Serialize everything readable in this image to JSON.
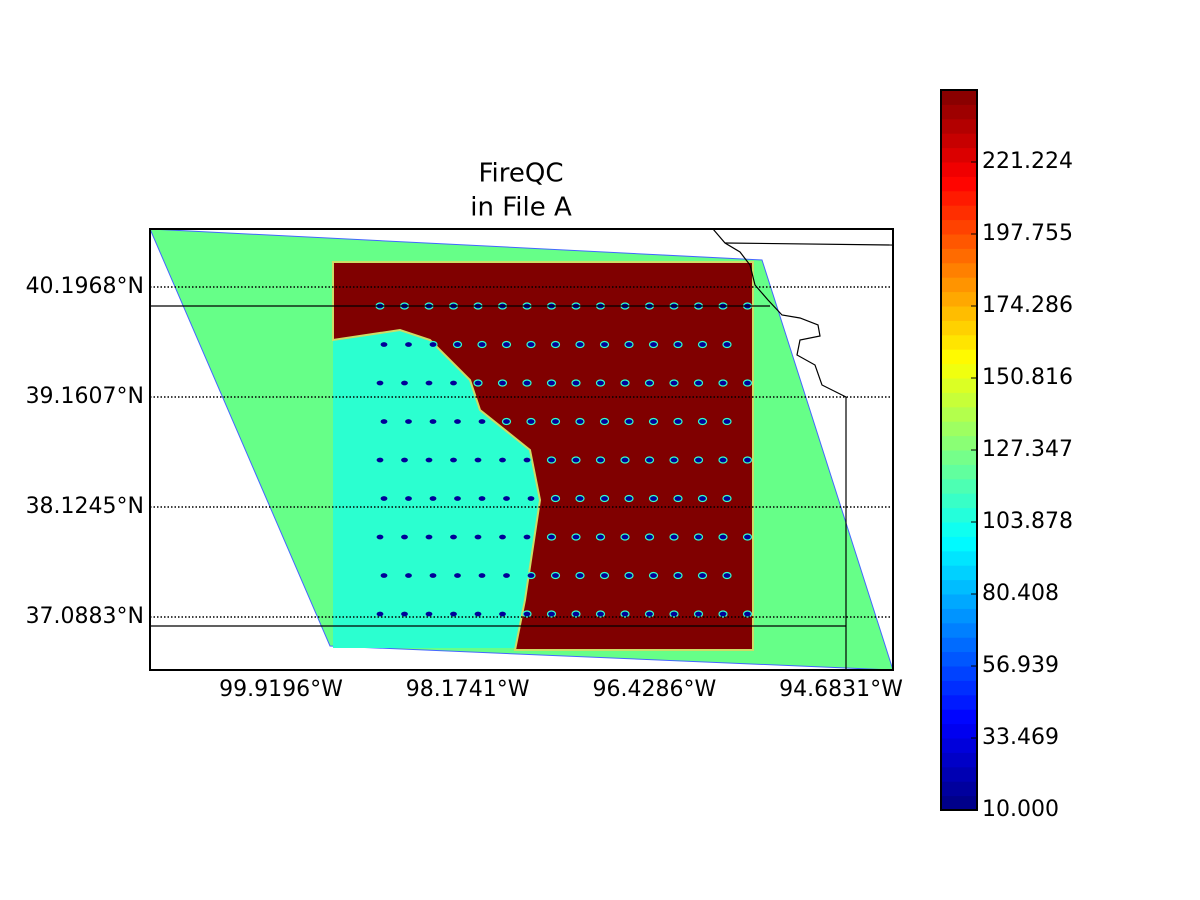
{
  "map": {
    "title": [
      "FireQC",
      "in File A"
    ],
    "xlim": [
      -101.1446,
      -94.197
    ],
    "ylim": [
      36.589,
      40.743
    ],
    "lat_ticks": [
      {
        "value": 40.1968,
        "label": "40.1968°N"
      },
      {
        "value": 39.1607,
        "label": "39.1607°N"
      },
      {
        "value": 38.1245,
        "label": "38.1245°N"
      },
      {
        "value": 37.0883,
        "label": "37.0883°N"
      }
    ],
    "lon_ticks": [
      {
        "value": -99.9196,
        "label": "99.9196°W"
      },
      {
        "value": -98.1741,
        "label": "98.1741°W"
      },
      {
        "value": -96.4286,
        "label": "96.4286°W"
      },
      {
        "value": -94.6831,
        "label": "94.6831°W"
      }
    ]
  },
  "colorbar": {
    "lim": [
      10,
      244.694
    ],
    "ticks": [
      {
        "value": 10,
        "label": "10.000"
      },
      33.469,
      56.939,
      80.408,
      103.878,
      127.347,
      150.816,
      174.286,
      197.755,
      221.224
    ]
  }
}
